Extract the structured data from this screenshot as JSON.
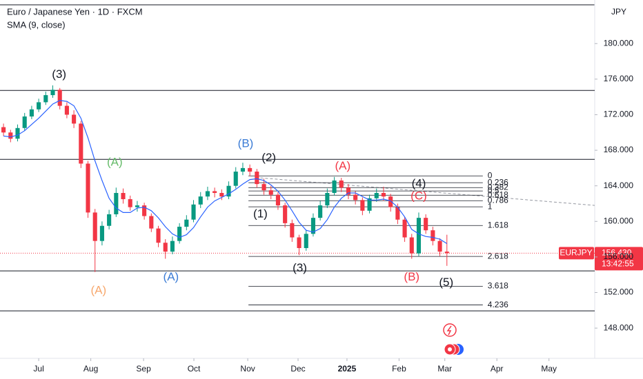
{
  "chart_data": {
    "type": "candlestick",
    "title": "Euro / Japanese Yen · 1D · FXCM",
    "subtitle": "SMA (9, close)",
    "currency": "JPY",
    "symbol": "EURJPY",
    "last_price": {
      "value": 156.43,
      "label": "156.430"
    },
    "countdown": "13:42:55",
    "xlim": [
      -0.5,
      84
    ],
    "xticks": [
      {
        "value": 5,
        "label": "Jul"
      },
      {
        "value": 12.4,
        "label": "Aug"
      },
      {
        "value": 19.9,
        "label": "Sep"
      },
      {
        "value": 27.05,
        "label": "Oct"
      },
      {
        "value": 34.7,
        "label": "Nov"
      },
      {
        "value": 41.85,
        "label": "Dec"
      },
      {
        "value": 48.8,
        "label": "2025"
      },
      {
        "value": 56.2,
        "label": "Feb"
      },
      {
        "value": 62.7,
        "label": "Mar"
      },
      {
        "value": 70.1,
        "label": "Apr"
      },
      {
        "value": 77.5,
        "label": "May"
      }
    ],
    "ylim": [
      144.6,
      184.9
    ],
    "yticks": [
      {
        "value": 148,
        "label": "148.000"
      },
      {
        "value": 152,
        "label": "152.000"
      },
      {
        "value": 156,
        "label": "156.000"
      },
      {
        "value": 160,
        "label": "160.000"
      },
      {
        "value": 164,
        "label": "164.000"
      },
      {
        "value": 168,
        "label": "168.000"
      },
      {
        "value": 172,
        "label": "172.000"
      },
      {
        "value": 176,
        "label": "176.000"
      },
      {
        "value": 180,
        "label": "180.000"
      }
    ],
    "up_color": "#089981",
    "down_color": "#f23645",
    "ohlc": [
      [
        170.6,
        171.0,
        169.6,
        170.0
      ],
      [
        170.0,
        170.3,
        168.9,
        169.3
      ],
      [
        169.3,
        170.9,
        169.0,
        170.5
      ],
      [
        170.5,
        172.2,
        170.2,
        171.8
      ],
      [
        171.8,
        173.0,
        171.5,
        172.6
      ],
      [
        172.6,
        173.8,
        172.3,
        173.4
      ],
      [
        173.4,
        174.6,
        173.1,
        174.2
      ],
      [
        174.2,
        175.3,
        173.9,
        174.8
      ],
      [
        174.8,
        175.0,
        172.6,
        173.0
      ],
      [
        173.0,
        173.4,
        171.6,
        172.0
      ],
      [
        172.0,
        172.5,
        170.5,
        171.0
      ],
      [
        171.0,
        171.3,
        166.0,
        166.5
      ],
      [
        166.5,
        166.8,
        160.4,
        161.0
      ],
      [
        161.0,
        161.4,
        154.3,
        157.8
      ],
      [
        157.8,
        160.0,
        157.3,
        159.5
      ],
      [
        159.5,
        161.3,
        159.1,
        160.8
      ],
      [
        160.8,
        163.8,
        160.5,
        163.2
      ],
      [
        163.2,
        163.7,
        162.0,
        162.5
      ],
      [
        162.5,
        162.9,
        161.2,
        161.6
      ],
      [
        161.6,
        162.3,
        161.1,
        161.8
      ],
      [
        161.8,
        162.1,
        160.2,
        160.6
      ],
      [
        160.6,
        160.9,
        158.8,
        159.2
      ],
      [
        159.2,
        159.5,
        157.1,
        157.6
      ],
      [
        157.6,
        158.0,
        155.8,
        156.6
      ],
      [
        156.6,
        158.3,
        156.3,
        157.8
      ],
      [
        157.8,
        159.8,
        157.5,
        159.4
      ],
      [
        159.4,
        160.7,
        159.0,
        160.2
      ],
      [
        160.2,
        162.4,
        159.9,
        161.9
      ],
      [
        161.9,
        163.3,
        161.5,
        162.8
      ],
      [
        162.8,
        163.9,
        162.4,
        163.4
      ],
      [
        163.4,
        163.8,
        162.7,
        163.2
      ],
      [
        163.2,
        163.6,
        162.4,
        162.8
      ],
      [
        162.8,
        164.5,
        162.5,
        164.0
      ],
      [
        164.0,
        166.1,
        163.7,
        165.6
      ],
      [
        165.6,
        166.6,
        165.2,
        166.0
      ],
      [
        166.0,
        166.4,
        165.1,
        165.6
      ],
      [
        165.6,
        165.9,
        163.8,
        164.2
      ],
      [
        164.2,
        164.8,
        163.0,
        163.5
      ],
      [
        163.5,
        164.0,
        162.5,
        163.0
      ],
      [
        163.0,
        163.3,
        161.3,
        161.8
      ],
      [
        161.8,
        162.1,
        159.3,
        159.8
      ],
      [
        159.8,
        160.2,
        157.7,
        158.2
      ],
      [
        158.2,
        158.5,
        156.2,
        157.0
      ],
      [
        157.0,
        159.0,
        156.7,
        158.6
      ],
      [
        158.6,
        160.9,
        158.3,
        160.4
      ],
      [
        160.4,
        162.3,
        160.1,
        161.8
      ],
      [
        161.8,
        163.7,
        161.5,
        163.2
      ],
      [
        163.2,
        165.0,
        162.9,
        164.6
      ],
      [
        164.6,
        164.9,
        163.3,
        163.8
      ],
      [
        163.8,
        164.2,
        162.5,
        163.0
      ],
      [
        163.0,
        163.4,
        161.9,
        162.4
      ],
      [
        162.4,
        162.7,
        160.7,
        161.2
      ],
      [
        161.2,
        163.0,
        160.9,
        162.6
      ],
      [
        162.6,
        163.7,
        162.2,
        163.2
      ],
      [
        163.2,
        163.9,
        162.3,
        162.8
      ],
      [
        162.8,
        163.1,
        161.1,
        161.6
      ],
      [
        161.6,
        162.0,
        159.7,
        160.2
      ],
      [
        160.2,
        160.5,
        157.7,
        158.2
      ],
      [
        158.2,
        158.6,
        155.8,
        156.4
      ],
      [
        156.4,
        161.0,
        156.1,
        160.4
      ],
      [
        160.4,
        160.8,
        158.6,
        159.0
      ],
      [
        159.0,
        159.4,
        157.3,
        157.8
      ],
      [
        157.8,
        158.1,
        156.1,
        156.6
      ],
      [
        156.6,
        158.5,
        155.0,
        156.43
      ]
    ],
    "sma": {
      "color": "#2962ff",
      "values": [
        169.6,
        169.5,
        169.7,
        170.2,
        170.9,
        171.6,
        172.4,
        173.2,
        173.6,
        173.5,
        173.0,
        171.6,
        169.4,
        166.8,
        164.6,
        162.6,
        161.5,
        161.0,
        161.0,
        161.5,
        161.6,
        161.2,
        160.4,
        159.4,
        158.6,
        158.2,
        158.5,
        159.3,
        160.5,
        161.6,
        162.3,
        162.7,
        163.1,
        163.6,
        164.2,
        164.7,
        164.8,
        164.6,
        164.1,
        163.4,
        162.4,
        161.2,
        159.9,
        159.0,
        158.8,
        159.2,
        160.2,
        161.6,
        162.6,
        163.2,
        163.2,
        162.8,
        162.4,
        162.4,
        162.5,
        162.3,
        161.6,
        160.5,
        159.1,
        158.6,
        158.3,
        158.2,
        158.0,
        157.5
      ]
    },
    "levels": [
      174.73,
      166.98,
      154.43,
      149.94
    ],
    "trendline": {
      "x": [
        36.5,
        84
      ],
      "y": [
        164.9,
        161.8
      ]
    },
    "fib": {
      "x_start": 34.8,
      "x_end": 68.1,
      "levels": [
        {
          "ratio": 0,
          "price": 165.12
        },
        {
          "ratio": 0.236,
          "price": 164.35
        },
        {
          "ratio": 0.382,
          "price": 163.8
        },
        {
          "ratio": 0.5,
          "price": 163.42
        },
        {
          "ratio": 0.618,
          "price": 162.95
        },
        {
          "ratio": 0.786,
          "price": 162.33
        },
        {
          "ratio": 1,
          "price": 161.64
        },
        {
          "ratio": 1.618,
          "price": 159.54
        },
        {
          "ratio": 2.618,
          "price": 156.06
        },
        {
          "ratio": 3.618,
          "price": 152.7
        },
        {
          "ratio": 4.236,
          "price": 150.6
        }
      ]
    },
    "annotations": [
      {
        "text": "(3)",
        "x": 7.9,
        "y": 176.5,
        "color": "#131722"
      },
      {
        "text": "(A)",
        "x": 15.8,
        "y": 166.6,
        "color": "#66bb6a"
      },
      {
        "text": "(A)",
        "x": 13.5,
        "y": 152.2,
        "color": "#f7a76c"
      },
      {
        "text": "(A)",
        "x": 23.8,
        "y": 153.7,
        "color": "#3a7bd5"
      },
      {
        "text": "(B)",
        "x": 34.4,
        "y": 168.7,
        "color": "#3a7bd5"
      },
      {
        "text": "(2)",
        "x": 37.7,
        "y": 167.1,
        "color": "#131722"
      },
      {
        "text": "(1)",
        "x": 36.5,
        "y": 160.8,
        "color": "#131722"
      },
      {
        "text": "(3)",
        "x": 42.1,
        "y": 154.7,
        "color": "#131722"
      },
      {
        "text": "(A)",
        "x": 48.2,
        "y": 166.2,
        "color": "#f23645"
      },
      {
        "text": "(4)",
        "x": 59,
        "y": 164.2,
        "color": "#131722"
      },
      {
        "text": "(C)",
        "x": 59,
        "y": 162.8,
        "color": "#f23645"
      },
      {
        "text": "(B)",
        "x": 58,
        "y": 153.7,
        "color": "#f23645"
      },
      {
        "text": "(5)",
        "x": 62.9,
        "y": 153.1,
        "color": "#131722"
      }
    ]
  }
}
